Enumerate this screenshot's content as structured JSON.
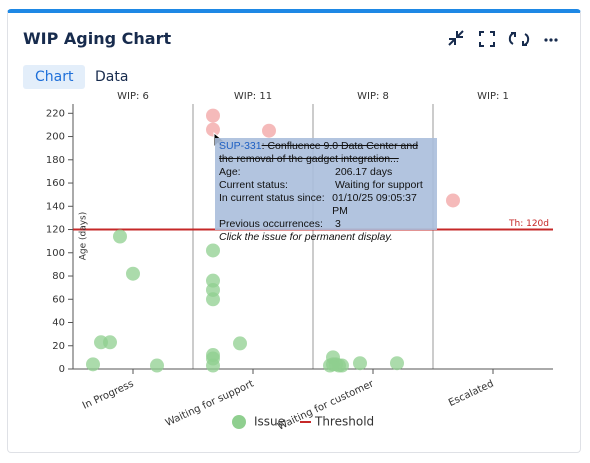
{
  "header": {
    "title": "WIP Aging Chart"
  },
  "tabs": [
    "Chart",
    "Data"
  ],
  "chart_data": {
    "type": "scatter",
    "categories": [
      "In Progress",
      "Waiting for support",
      "Waiting for customer",
      "Escalated"
    ],
    "column_labels": [
      "WIP: 6",
      "WIP: 11",
      "WIP: 8",
      "WIP: 1"
    ],
    "ylabel": "Age (days)",
    "ylim": [
      0,
      228
    ],
    "yticks": [
      0,
      20,
      40,
      60,
      80,
      100,
      120,
      140,
      160,
      180,
      200,
      220
    ],
    "series": [
      {
        "name": "Issue",
        "color": "#8fcf8f",
        "color_above_threshold": "#f2a3a3",
        "category_index": [
          0,
          0,
          0,
          0,
          0,
          0,
          1,
          1,
          1,
          1,
          1,
          1,
          1,
          1,
          1,
          1,
          1,
          2,
          2,
          2,
          2,
          2,
          2,
          2,
          2,
          3
        ],
        "values": [
          4,
          23,
          23,
          114,
          82,
          3,
          218,
          206,
          102,
          76,
          68,
          60,
          22,
          12,
          9,
          3,
          205,
          10,
          4,
          4,
          3,
          3,
          3,
          5,
          5,
          145
        ]
      },
      {
        "name": "Threshold",
        "color": "#c62828",
        "values": [
          120
        ],
        "value_labels": [
          "Th: 120d"
        ]
      }
    ]
  },
  "tooltip": {
    "key": "SUP-331",
    "summary": ": Confluence 9.0 Data Center and the removal of the gadget integration...",
    "rows": [
      [
        "Age:",
        "206.17 days"
      ],
      [
        "Current status:",
        "Waiting for support"
      ],
      [
        "In current status since:",
        "01/10/25 09:05:37 PM"
      ],
      [
        "Previous occurrences:",
        "3"
      ]
    ],
    "hint": "Click the issue for permanent display."
  }
}
